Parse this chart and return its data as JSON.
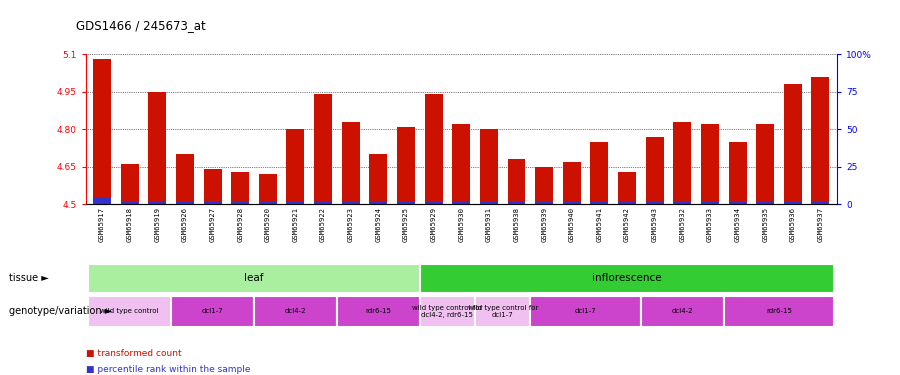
{
  "title": "GDS1466 / 245673_at",
  "samples": [
    "GSM65917",
    "GSM65918",
    "GSM65919",
    "GSM65926",
    "GSM65927",
    "GSM65928",
    "GSM65920",
    "GSM65921",
    "GSM65922",
    "GSM65923",
    "GSM65924",
    "GSM65925",
    "GSM65929",
    "GSM65930",
    "GSM65931",
    "GSM65938",
    "GSM65939",
    "GSM65940",
    "GSM65941",
    "GSM65942",
    "GSM65943",
    "GSM65932",
    "GSM65933",
    "GSM65934",
    "GSM65935",
    "GSM65936",
    "GSM65937"
  ],
  "transformed_count": [
    5.08,
    4.66,
    4.95,
    4.7,
    4.64,
    4.63,
    4.62,
    4.8,
    4.94,
    4.83,
    4.7,
    4.81,
    4.94,
    4.82,
    4.8,
    4.68,
    4.65,
    4.67,
    4.75,
    4.63,
    4.77,
    4.83,
    4.82,
    4.75,
    4.82,
    4.98,
    5.01
  ],
  "percentile_abs": [
    0.025,
    0.01,
    0.01,
    0.01,
    0.01,
    0.01,
    0.01,
    0.01,
    0.01,
    0.01,
    0.01,
    0.01,
    0.01,
    0.01,
    0.01,
    0.01,
    0.01,
    0.01,
    0.01,
    0.01,
    0.01,
    0.01,
    0.01,
    0.01,
    0.01,
    0.01,
    0.01
  ],
  "ymin": 4.5,
  "ymax": 5.1,
  "yticks": [
    4.5,
    4.65,
    4.8,
    4.95,
    5.1
  ],
  "ytick_labels": [
    "4.5",
    "4.65",
    "4.80",
    "4.95",
    "5.1"
  ],
  "y2ticks": [
    0,
    25,
    50,
    75,
    100
  ],
  "y2tick_labels": [
    "0",
    "25",
    "50",
    "75",
    "100%"
  ],
  "bar_color": "#cc1100",
  "percentile_color": "#3333cc",
  "tissue_regions": [
    {
      "label": "leaf",
      "start": 0,
      "end": 11,
      "color": "#aaeea0"
    },
    {
      "label": "inflorescence",
      "start": 12,
      "end": 26,
      "color": "#33cc33"
    }
  ],
  "genotype_regions": [
    {
      "label": "wild type control",
      "start": 0,
      "end": 2,
      "color": "#f0c0f0"
    },
    {
      "label": "dcl1-7",
      "start": 3,
      "end": 5,
      "color": "#cc44cc"
    },
    {
      "label": "dcl4-2",
      "start": 6,
      "end": 8,
      "color": "#cc44cc"
    },
    {
      "label": "rdr6-15",
      "start": 9,
      "end": 11,
      "color": "#cc44cc"
    },
    {
      "label": "wild type control for\ndcl4-2, rdr6-15",
      "start": 12,
      "end": 13,
      "color": "#f0c0f0"
    },
    {
      "label": "wild type control for\ndcl1-7",
      "start": 14,
      "end": 15,
      "color": "#f0c0f0"
    },
    {
      "label": "dcl1-7",
      "start": 16,
      "end": 19,
      "color": "#cc44cc"
    },
    {
      "label": "dcl4-2",
      "start": 20,
      "end": 22,
      "color": "#cc44cc"
    },
    {
      "label": "rdr6-15",
      "start": 23,
      "end": 26,
      "color": "#cc44cc"
    }
  ],
  "tissue_label": "tissue",
  "genotype_label": "genotype/variation",
  "legend_red_label": "transformed count",
  "legend_blue_label": "percentile rank within the sample",
  "chart_bg": "#d8d8d8"
}
